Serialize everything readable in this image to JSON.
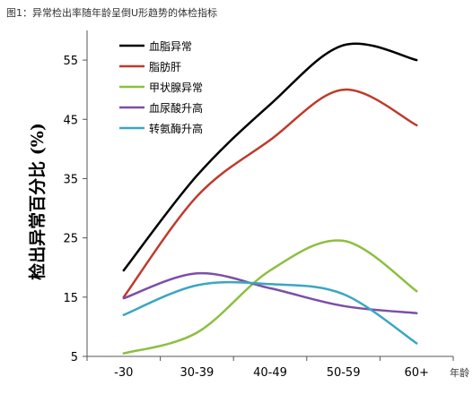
{
  "caption": "图1：异常检出率随年龄呈倒U形趋势的体检指标",
  "chart_data": {
    "type": "line",
    "title": "",
    "xlabel": "年龄",
    "ylabel": "检出异常百分比 (%)",
    "categories": [
      "-30",
      "30-39",
      "40-49",
      "50-59",
      "60+"
    ],
    "ylim": [
      5,
      60
    ],
    "yticks": [
      5,
      15,
      25,
      35,
      45,
      55
    ],
    "grid": false,
    "legend_position": "top-left",
    "series": [
      {
        "name": "血脂异常",
        "color": "#000000",
        "values": [
          19.5,
          35.5,
          47.5,
          57.5,
          55
        ]
      },
      {
        "name": "脂肪肝",
        "color": "#c0392b",
        "values": [
          15,
          32,
          41.5,
          50,
          44
        ]
      },
      {
        "name": "甲状腺异常",
        "color": "#8cbf3f",
        "values": [
          5.5,
          9,
          19.5,
          24.5,
          16
        ]
      },
      {
        "name": "血尿酸升高",
        "color": "#7b4fa6",
        "values": [
          14.8,
          19,
          16.5,
          13.5,
          12.3
        ]
      },
      {
        "name": "转氨酶升高",
        "color": "#3aa6c4",
        "values": [
          12,
          17,
          17.2,
          15.5,
          7.2
        ]
      }
    ]
  }
}
